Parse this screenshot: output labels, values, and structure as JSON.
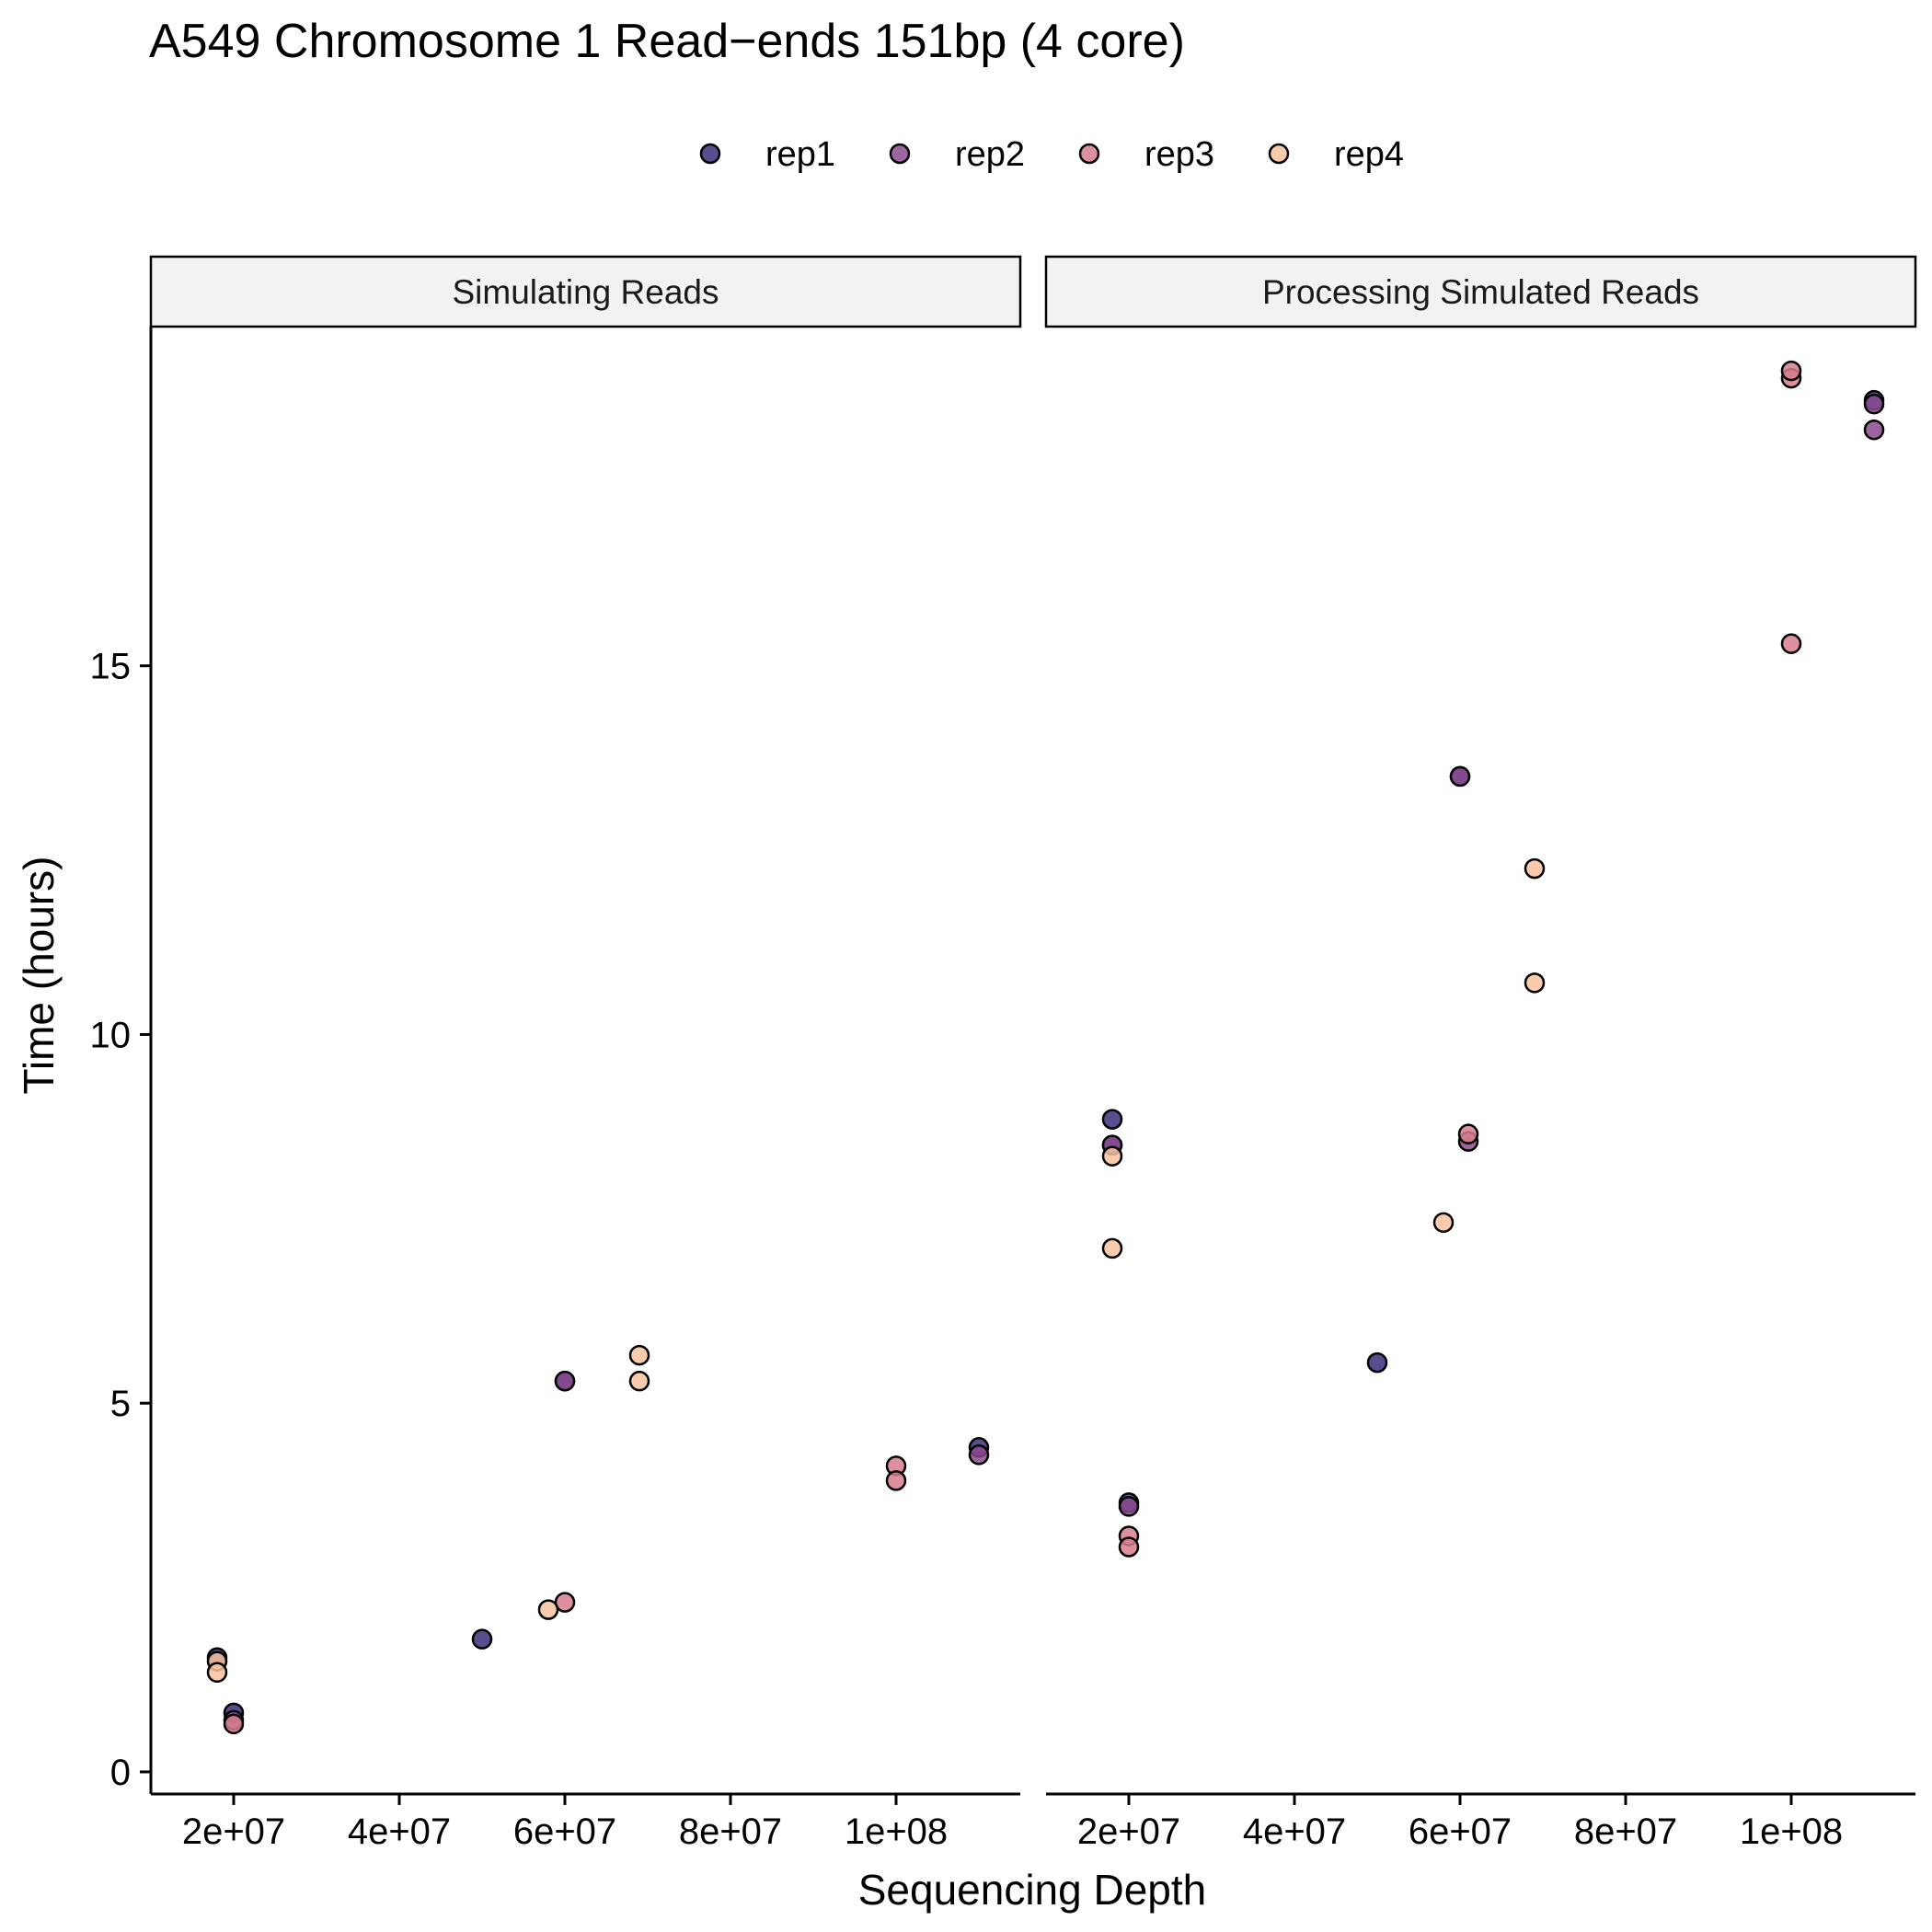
{
  "chart_data": {
    "type": "scatter",
    "title": "A549 Chromosome 1 Read−ends 151bp (4 core)",
    "xlabel": "Sequencing Depth",
    "ylabel": "Time (hours)",
    "xlim": [
      10000000,
      115000000
    ],
    "ylim": [
      -0.3,
      19.6
    ],
    "x_ticks": [
      20000000,
      40000000,
      60000000,
      80000000,
      100000000
    ],
    "x_tick_labels": [
      "2e+07",
      "4e+07",
      "6e+07",
      "8e+07",
      "1e+08"
    ],
    "y_ticks": [
      0,
      5,
      10,
      15
    ],
    "y_tick_labels": [
      "0",
      "5",
      "10",
      "15"
    ],
    "grid": false,
    "legend_position": "top",
    "facets": [
      "Simulating Reads",
      "Processing Simulated Reads"
    ],
    "series": [
      {
        "name": "rep1",
        "color": "#3b2f7a",
        "points": [
          {
            "facet": 0,
            "x": 18000000,
            "y": 1.55
          },
          {
            "facet": 0,
            "x": 20000000,
            "y": 0.8
          },
          {
            "facet": 0,
            "x": 50000000,
            "y": 1.8
          },
          {
            "facet": 0,
            "x": 60000000,
            "y": 5.3
          },
          {
            "facet": 0,
            "x": 110000000,
            "y": 4.4
          },
          {
            "facet": 1,
            "x": 18000000,
            "y": 8.5
          },
          {
            "facet": 1,
            "x": 18000000,
            "y": 8.85
          },
          {
            "facet": 1,
            "x": 20000000,
            "y": 3.65
          },
          {
            "facet": 1,
            "x": 50000000,
            "y": 5.55
          },
          {
            "facet": 1,
            "x": 60000000,
            "y": 13.5
          },
          {
            "facet": 1,
            "x": 110000000,
            "y": 18.6
          }
        ]
      },
      {
        "name": "rep2",
        "color": "#8c4a8f",
        "points": [
          {
            "facet": 0,
            "x": 20000000,
            "y": 0.7
          },
          {
            "facet": 0,
            "x": 60000000,
            "y": 5.3
          },
          {
            "facet": 0,
            "x": 110000000,
            "y": 4.3
          },
          {
            "facet": 1,
            "x": 18000000,
            "y": 8.5
          },
          {
            "facet": 1,
            "x": 20000000,
            "y": 3.6
          },
          {
            "facet": 1,
            "x": 60000000,
            "y": 13.5
          },
          {
            "facet": 1,
            "x": 61000000,
            "y": 8.55
          },
          {
            "facet": 1,
            "x": 110000000,
            "y": 18.2
          },
          {
            "facet": 1,
            "x": 110000000,
            "y": 18.55
          }
        ]
      },
      {
        "name": "rep3",
        "color": "#d77d8c",
        "points": [
          {
            "facet": 0,
            "x": 20000000,
            "y": 0.65
          },
          {
            "facet": 0,
            "x": 60000000,
            "y": 2.3
          },
          {
            "facet": 0,
            "x": 100000000,
            "y": 4.15
          },
          {
            "facet": 0,
            "x": 100000000,
            "y": 3.95
          },
          {
            "facet": 1,
            "x": 20000000,
            "y": 3.2
          },
          {
            "facet": 1,
            "x": 20000000,
            "y": 3.05
          },
          {
            "facet": 1,
            "x": 61000000,
            "y": 8.65
          },
          {
            "facet": 1,
            "x": 100000000,
            "y": 15.3
          },
          {
            "facet": 1,
            "x": 100000000,
            "y": 18.9
          },
          {
            "facet": 1,
            "x": 100000000,
            "y": 19.0
          }
        ]
      },
      {
        "name": "rep4",
        "color": "#f6c29c",
        "points": [
          {
            "facet": 0,
            "x": 18000000,
            "y": 1.5
          },
          {
            "facet": 0,
            "x": 18000000,
            "y": 1.35
          },
          {
            "facet": 0,
            "x": 58000000,
            "y": 2.2
          },
          {
            "facet": 0,
            "x": 69000000,
            "y": 5.65
          },
          {
            "facet": 0,
            "x": 69000000,
            "y": 5.3
          },
          {
            "facet": 1,
            "x": 18000000,
            "y": 8.35
          },
          {
            "facet": 1,
            "x": 18000000,
            "y": 7.1
          },
          {
            "facet": 1,
            "x": 58000000,
            "y": 7.45
          },
          {
            "facet": 1,
            "x": 69000000,
            "y": 12.25
          },
          {
            "facet": 1,
            "x": 69000000,
            "y": 10.7
          }
        ]
      }
    ]
  }
}
